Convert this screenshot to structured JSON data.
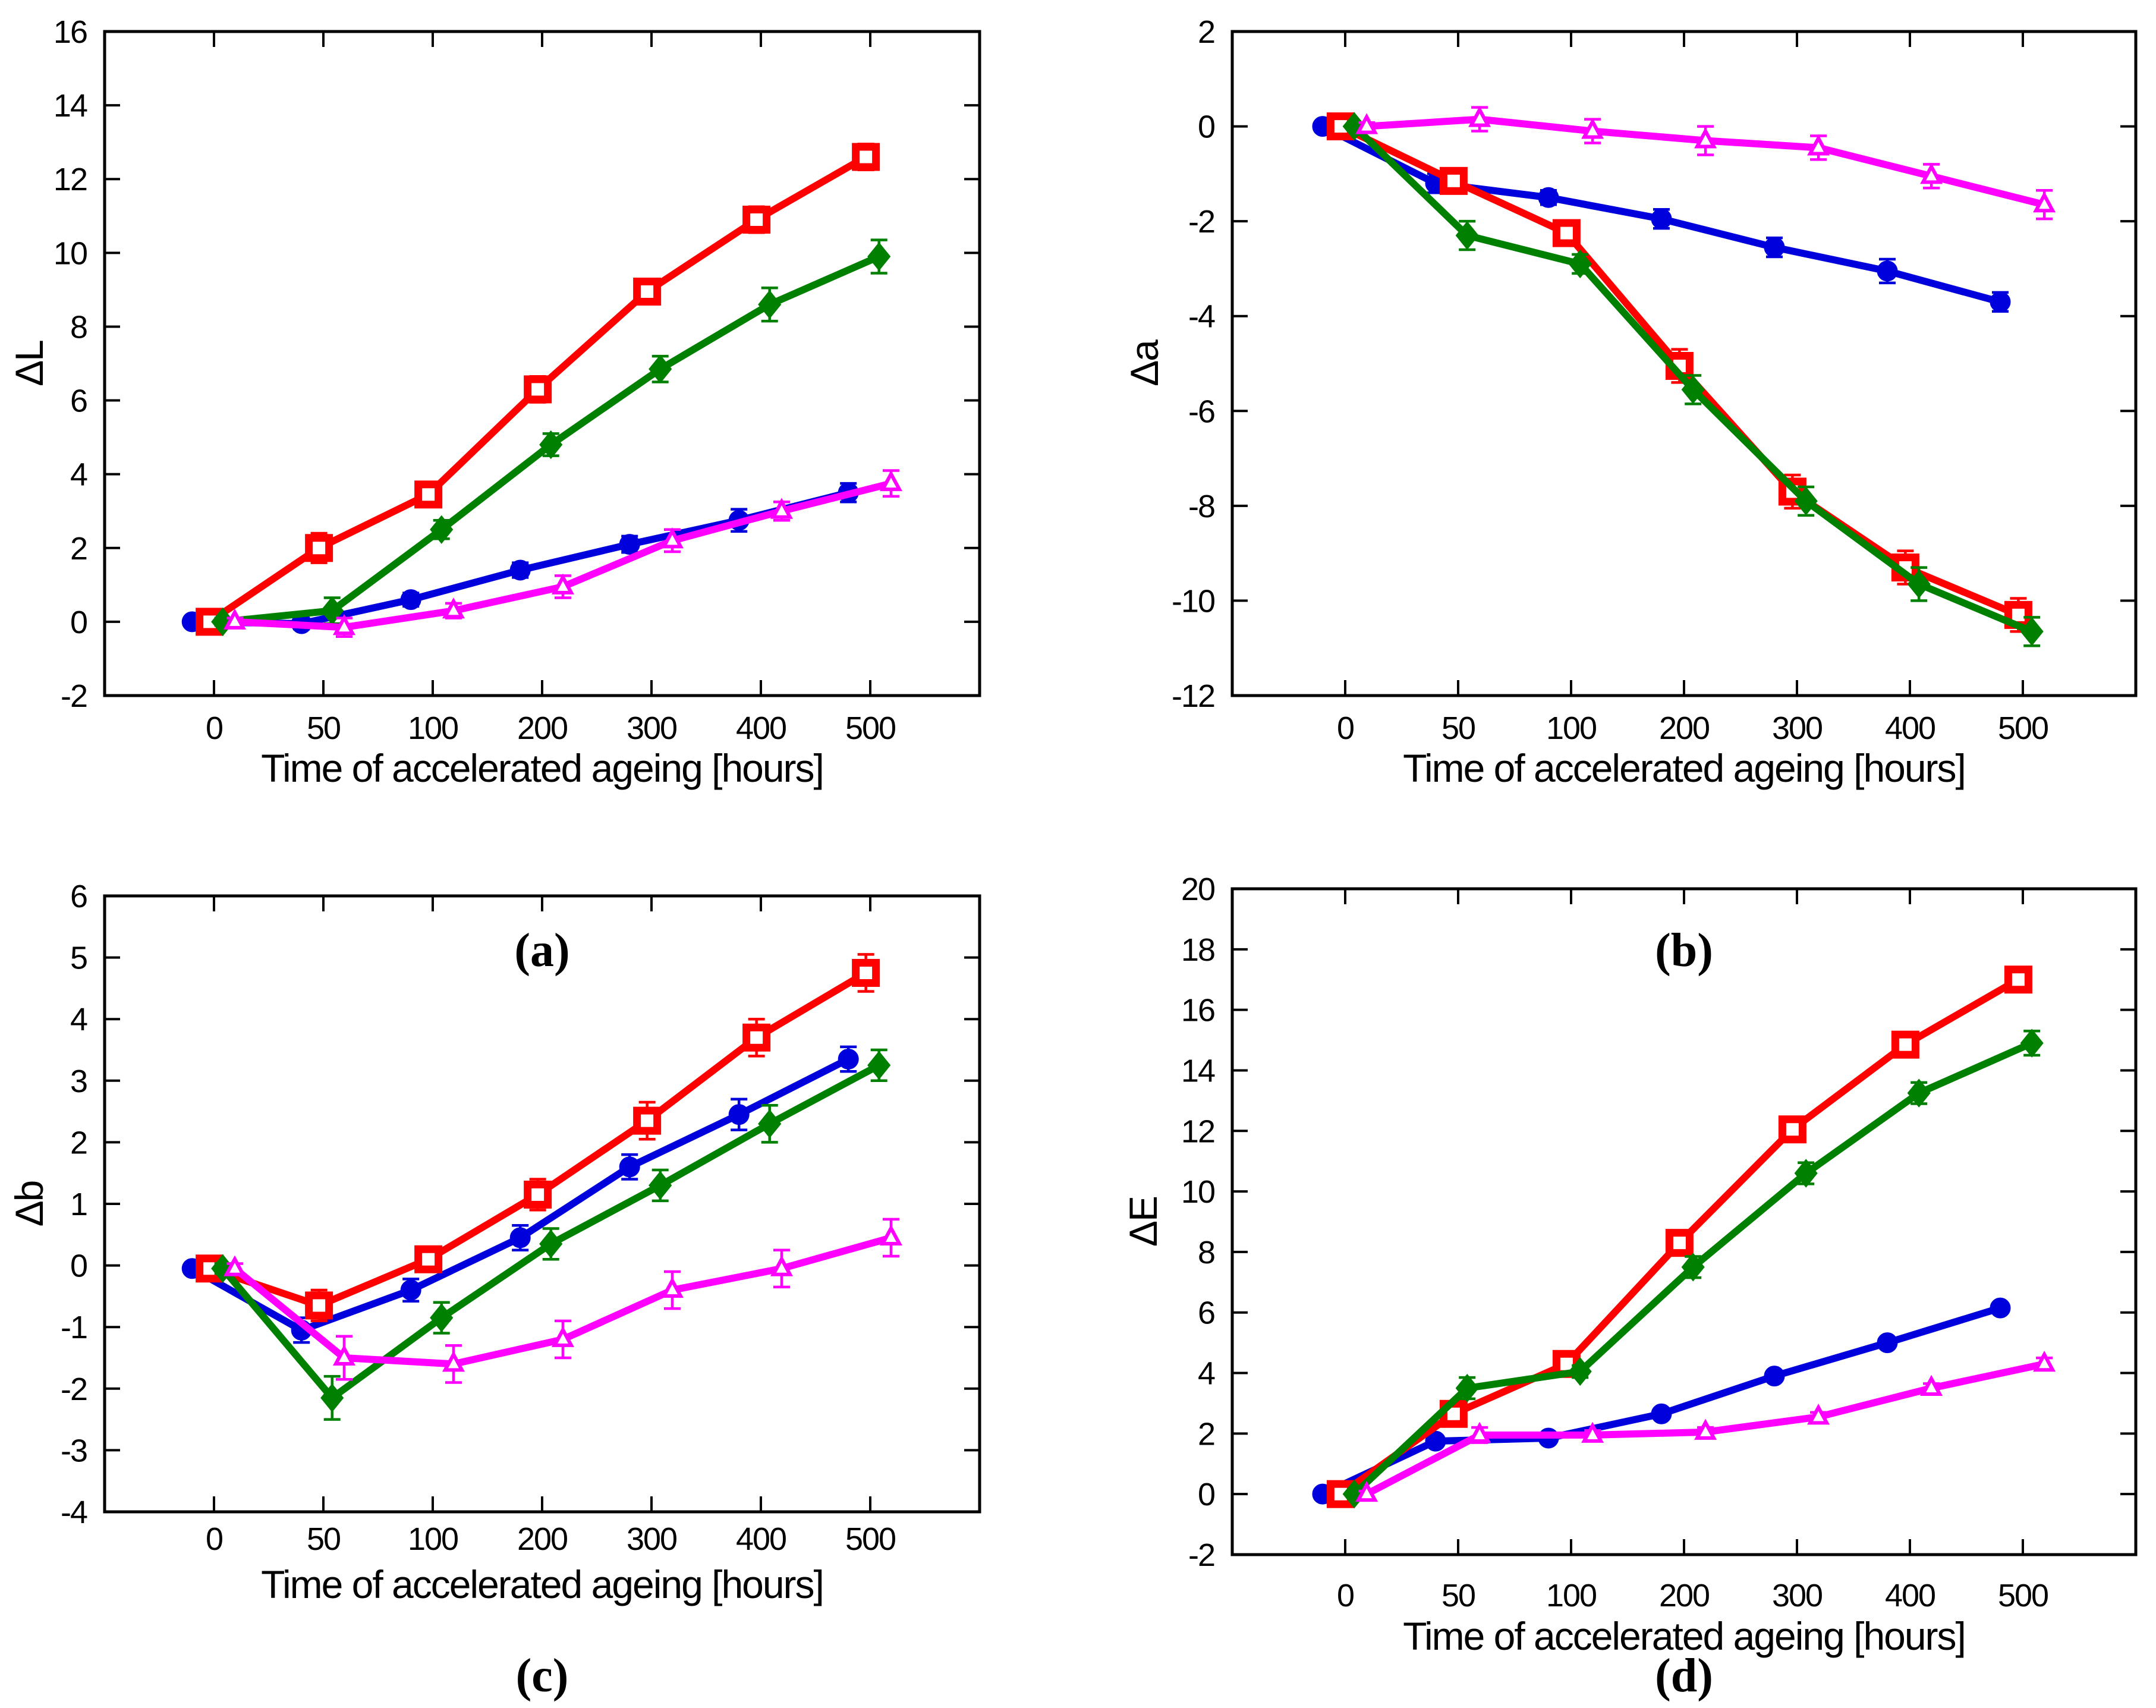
{
  "figure": {
    "background": "#ffffff",
    "axis_color": "#000000"
  },
  "chart_data": [
    {
      "id": "a",
      "type": "line",
      "caption": "(a)",
      "ylabel": "ΔL",
      "xlabel": "Time of accelerated ageing [hours]",
      "ylim": [
        -2,
        16
      ],
      "ytick_step": 2,
      "x_categories": [
        0,
        50,
        100,
        200,
        300,
        400,
        500
      ],
      "xtick_labels": [
        "0",
        "50",
        "100",
        "200",
        "300",
        "400",
        "500"
      ],
      "grid": false,
      "legend": "none",
      "series": [
        {
          "name": "blue-circle",
          "color": "#0000dd",
          "marker": "circle",
          "x_offset": -0.2,
          "values": [
            0,
            -0.05,
            0.6,
            1.4,
            2.1,
            2.75,
            3.5
          ],
          "errors": [
            0.12,
            0.15,
            0.18,
            0.2,
            0.22,
            0.3,
            0.25
          ]
        },
        {
          "name": "red-square",
          "color": "#ff0000",
          "marker": "square",
          "x_offset": -0.04,
          "values": [
            0,
            2.0,
            3.45,
            6.3,
            8.95,
            10.9,
            12.6
          ],
          "errors": [
            0.1,
            0.4,
            0.3,
            0.35,
            0.3,
            0.35,
            0.35
          ]
        },
        {
          "name": "green-diamond",
          "color": "#008000",
          "marker": "diamond",
          "x_offset": 0.08,
          "values": [
            0,
            0.3,
            2.5,
            4.8,
            6.85,
            8.6,
            9.9
          ],
          "errors": [
            0.1,
            0.35,
            0.25,
            0.3,
            0.35,
            0.45,
            0.45
          ]
        },
        {
          "name": "magenta-triangle",
          "color": "#ff00ff",
          "marker": "triangle",
          "x_offset": 0.19,
          "values": [
            0,
            -0.15,
            0.3,
            0.95,
            2.2,
            3.0,
            3.75
          ],
          "errors": [
            0.1,
            0.25,
            0.2,
            0.3,
            0.3,
            0.25,
            0.35
          ]
        }
      ]
    },
    {
      "id": "b",
      "type": "line",
      "caption": "(b)",
      "ylabel": "Δa",
      "xlabel": "Time of accelerated ageing [hours]",
      "ylim": [
        -12,
        2
      ],
      "ytick_step": 2,
      "x_categories": [
        0,
        50,
        100,
        200,
        300,
        400,
        500
      ],
      "xtick_labels": [
        "0",
        "50",
        "100",
        "200",
        "300",
        "400",
        "500"
      ],
      "grid": false,
      "legend": "none",
      "series": [
        {
          "name": "blue-circle",
          "color": "#0000dd",
          "marker": "circle",
          "x_offset": -0.2,
          "values": [
            0,
            -1.2,
            -1.5,
            -1.95,
            -2.55,
            -3.05,
            -3.7
          ],
          "errors": [
            0.08,
            0.2,
            0.15,
            0.2,
            0.2,
            0.25,
            0.2
          ]
        },
        {
          "name": "red-square",
          "color": "#ff0000",
          "marker": "square",
          "x_offset": -0.04,
          "values": [
            0,
            -1.15,
            -2.25,
            -5.05,
            -7.7,
            -9.3,
            -10.3
          ],
          "errors": [
            0.05,
            0.25,
            0.2,
            0.35,
            0.35,
            0.35,
            0.35
          ]
        },
        {
          "name": "green-diamond",
          "color": "#008000",
          "marker": "diamond",
          "x_offset": 0.08,
          "values": [
            0,
            -2.3,
            -2.9,
            -5.55,
            -7.9,
            -9.65,
            -10.65
          ],
          "errors": [
            0.05,
            0.3,
            0.2,
            0.3,
            0.3,
            0.35,
            0.3
          ]
        },
        {
          "name": "magenta-triangle",
          "color": "#ff00ff",
          "marker": "triangle",
          "x_offset": 0.19,
          "values": [
            0,
            0.15,
            -0.1,
            -0.3,
            -0.45,
            -1.05,
            -1.65
          ],
          "errors": [
            0.08,
            0.25,
            0.25,
            0.3,
            0.25,
            0.25,
            0.3
          ]
        }
      ]
    },
    {
      "id": "c",
      "type": "line",
      "caption": "(c)",
      "ylabel": "Δb",
      "xlabel": "Time of  accelerated ageing [hours]",
      "ylim": [
        -4,
        6
      ],
      "ytick_step": 1,
      "x_categories": [
        0,
        50,
        100,
        200,
        300,
        400,
        500
      ],
      "xtick_labels": [
        "0",
        "50",
        "100",
        "200",
        "300",
        "400",
        "500"
      ],
      "grid": false,
      "legend": "none",
      "series": [
        {
          "name": "blue-circle",
          "color": "#0000dd",
          "marker": "circle",
          "x_offset": -0.2,
          "values": [
            -0.05,
            -1.05,
            -0.4,
            0.45,
            1.6,
            2.45,
            3.35
          ],
          "errors": [
            0.08,
            0.2,
            0.18,
            0.2,
            0.2,
            0.25,
            0.2
          ]
        },
        {
          "name": "red-square",
          "color": "#ff0000",
          "marker": "square",
          "x_offset": -0.04,
          "values": [
            -0.05,
            -0.65,
            0.1,
            1.15,
            2.35,
            3.7,
            4.75
          ],
          "errors": [
            0.08,
            0.25,
            0.2,
            0.25,
            0.3,
            0.3,
            0.3
          ]
        },
        {
          "name": "green-diamond",
          "color": "#008000",
          "marker": "diamond",
          "x_offset": 0.08,
          "values": [
            -0.05,
            -2.15,
            -0.85,
            0.35,
            1.3,
            2.3,
            3.25
          ],
          "errors": [
            0.08,
            0.35,
            0.25,
            0.25,
            0.25,
            0.3,
            0.25
          ]
        },
        {
          "name": "magenta-triangle",
          "color": "#ff00ff",
          "marker": "triangle",
          "x_offset": 0.19,
          "values": [
            -0.05,
            -1.5,
            -1.6,
            -1.2,
            -0.4,
            -0.05,
            0.45
          ],
          "errors": [
            0.08,
            0.35,
            0.3,
            0.3,
            0.3,
            0.3,
            0.3
          ]
        }
      ]
    },
    {
      "id": "d",
      "type": "line",
      "caption": "(d)",
      "ylabel": "ΔE",
      "xlabel": "Time of  accelerated ageing [hours]",
      "ylim": [
        -2,
        20
      ],
      "ytick_step": 2,
      "x_categories": [
        0,
        50,
        100,
        200,
        300,
        400,
        500
      ],
      "xtick_labels": [
        "0",
        "50",
        "100",
        "200",
        "300",
        "400",
        "500"
      ],
      "grid": false,
      "legend": "none",
      "series": [
        {
          "name": "blue-circle",
          "color": "#0000dd",
          "marker": "circle",
          "x_offset": -0.2,
          "values": [
            0,
            1.75,
            1.85,
            2.65,
            3.9,
            5.0,
            6.15
          ],
          "errors": [
            0.1,
            0.15,
            0.12,
            0.15,
            0.15,
            0.12,
            0.15
          ]
        },
        {
          "name": "red-square",
          "color": "#ff0000",
          "marker": "square",
          "x_offset": -0.04,
          "values": [
            0,
            2.65,
            4.3,
            8.3,
            12.05,
            14.85,
            17.0
          ],
          "errors": [
            0.1,
            0.2,
            0.25,
            0.35,
            0.35,
            0.35,
            0.3
          ]
        },
        {
          "name": "green-diamond",
          "color": "#008000",
          "marker": "diamond",
          "x_offset": 0.08,
          "values": [
            0,
            3.5,
            4.05,
            7.5,
            10.6,
            13.25,
            14.9
          ],
          "errors": [
            0.1,
            0.35,
            0.2,
            0.35,
            0.35,
            0.35,
            0.4
          ]
        },
        {
          "name": "magenta-triangle",
          "color": "#ff00ff",
          "marker": "triangle",
          "x_offset": 0.19,
          "values": [
            0,
            1.95,
            1.95,
            2.05,
            2.55,
            3.5,
            4.3
          ],
          "errors": [
            0.1,
            0.25,
            0.15,
            0.15,
            0.15,
            0.15,
            0.2
          ]
        }
      ]
    }
  ]
}
